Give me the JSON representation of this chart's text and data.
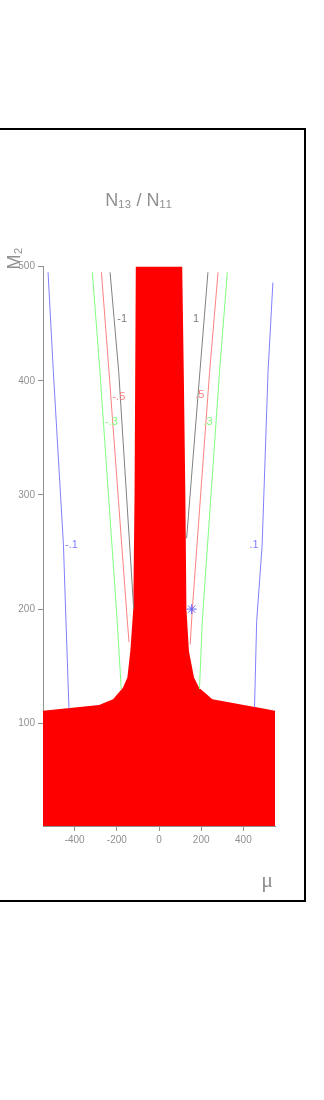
{
  "chart_data": {
    "type": "line",
    "title": "N₁₃ / N₁₁",
    "xlabel": "μ",
    "ylabel": "M₂",
    "xlim": [
      -550,
      550
    ],
    "xticks": [
      -400,
      -200,
      0,
      200,
      400
    ],
    "ylim": [
      10,
      500
    ],
    "yticks": [
      100,
      200,
      300,
      400,
      500
    ],
    "grid": false,
    "legend": false,
    "marker": "none",
    "line_style": "solid",
    "series": [
      {
        "name": "-1",
        "color": "#808080",
        "x": [
          -232,
          -191,
          -120
        ],
        "values": [
          495,
          408,
          200
        ]
      },
      {
        "name": "1",
        "color": "#808080",
        "x": [
          232,
          194,
          131
        ],
        "values": [
          495,
          408,
          262
        ]
      },
      {
        "name": "-.5",
        "color": "#ff8080",
        "x": [
          -273,
          -237,
          -150,
          -142
        ],
        "values": [
          495,
          408,
          189,
          171
        ]
      },
      {
        "name": ".5",
        "color": "#ff8080",
        "x": [
          280,
          240,
          158,
          148
        ],
        "values": [
          495,
          408,
          200,
          169
        ]
      },
      {
        "name": "-.3",
        "color": "#80ff80",
        "x": [
          -316,
          -280,
          -198,
          -179
        ],
        "values": [
          495,
          408,
          189,
          130
        ]
      },
      {
        "name": ".3",
        "color": "#80ff80",
        "x": [
          324,
          287,
          205,
          192
        ],
        "values": [
          495,
          408,
          189,
          130
        ]
      },
      {
        "name": "-.1",
        "color": "#8080ff",
        "x": [
          -526,
          -501,
          -453,
          -443,
          -427
        ],
        "values": [
          495,
          408,
          256,
          200,
          113
        ]
      },
      {
        "name": ".1",
        "color": "#8080ff",
        "x": [
          540,
          517,
          489,
          463,
          453
        ],
        "values": [
          486,
          408,
          256,
          189,
          114
        ]
      },
      {
        "type": "area",
        "color": "#ff0000",
        "x": [
          -550,
          -284,
          -218,
          -171,
          -150,
          -136,
          -122,
          -116,
          -110,
          110,
          118,
          125,
          130,
          142,
          166,
          190,
          253,
          550
        ],
        "values": [
          111,
          116,
          121,
          131,
          140,
          163,
          200,
          300,
          500,
          500,
          400,
          300,
          200,
          163,
          140,
          131,
          121,
          111
        ]
      },
      {
        "type": "scatter",
        "color": "#6060ff",
        "marker": "cross",
        "x": [
          155
        ],
        "values": [
          200
        ]
      }
    ]
  }
}
